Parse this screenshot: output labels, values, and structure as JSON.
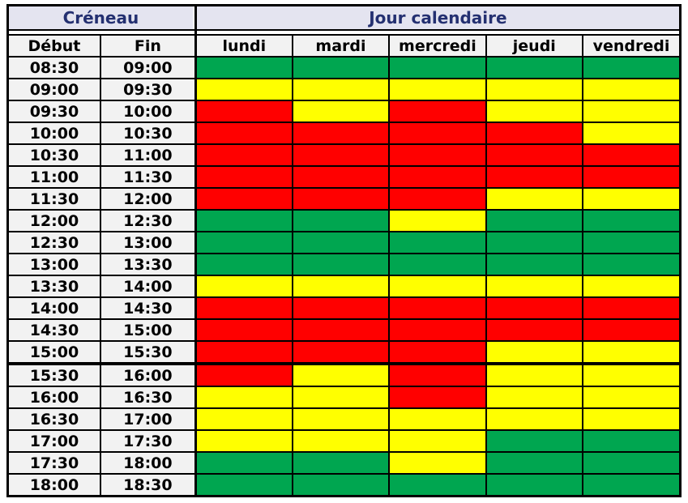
{
  "table": {
    "creneau_header": "Créneau",
    "jour_header": "Jour calendaire",
    "debut_label": "Début",
    "fin_label": "Fin",
    "days": [
      "lundi",
      "mardi",
      "mercredi",
      "jeudi",
      "vendredi"
    ],
    "group_header_bg": "#E4E4F0",
    "group_header_text_color": "#243071",
    "subheader_bg": "#F2F2F2",
    "time_cell_bg": "#F2F2F2",
    "border_color": "#000000",
    "state_colors": {
      "green": "#00A650",
      "yellow": "#FFFF00",
      "red": "#FF0000"
    },
    "rows": [
      {
        "debut": "08:30",
        "fin": "09:00",
        "cells": [
          "green",
          "green",
          "green",
          "green",
          "green"
        ]
      },
      {
        "debut": "09:00",
        "fin": "09:30",
        "cells": [
          "yellow",
          "yellow",
          "yellow",
          "yellow",
          "yellow"
        ]
      },
      {
        "debut": "09:30",
        "fin": "10:00",
        "cells": [
          "red",
          "yellow",
          "red",
          "yellow",
          "yellow"
        ]
      },
      {
        "debut": "10:00",
        "fin": "10:30",
        "cells": [
          "red",
          "red",
          "red",
          "red",
          "yellow"
        ]
      },
      {
        "debut": "10:30",
        "fin": "11:00",
        "cells": [
          "red",
          "red",
          "red",
          "red",
          "red"
        ]
      },
      {
        "debut": "11:00",
        "fin": "11:30",
        "cells": [
          "red",
          "red",
          "red",
          "red",
          "red"
        ]
      },
      {
        "debut": "11:30",
        "fin": "12:00",
        "cells": [
          "red",
          "red",
          "red",
          "yellow",
          "yellow"
        ]
      },
      {
        "debut": "12:00",
        "fin": "12:30",
        "cells": [
          "green",
          "green",
          "yellow",
          "green",
          "green"
        ]
      },
      {
        "debut": "12:30",
        "fin": "13:00",
        "cells": [
          "green",
          "green",
          "green",
          "green",
          "green"
        ]
      },
      {
        "debut": "13:00",
        "fin": "13:30",
        "cells": [
          "green",
          "green",
          "green",
          "green",
          "green"
        ]
      },
      {
        "debut": "13:30",
        "fin": "14:00",
        "cells": [
          "yellow",
          "yellow",
          "yellow",
          "yellow",
          "yellow"
        ]
      },
      {
        "debut": "14:00",
        "fin": "14:30",
        "cells": [
          "red",
          "red",
          "red",
          "red",
          "red"
        ]
      },
      {
        "debut": "14:30",
        "fin": "15:00",
        "cells": [
          "red",
          "red",
          "red",
          "red",
          "red"
        ]
      },
      {
        "debut": "15:00",
        "fin": "15:30",
        "cells": [
          "red",
          "red",
          "red",
          "yellow",
          "yellow"
        ],
        "thick_bottom": true
      },
      {
        "debut": "15:30",
        "fin": "16:00",
        "cells": [
          "red",
          "yellow",
          "red",
          "yellow",
          "yellow"
        ]
      },
      {
        "debut": "16:00",
        "fin": "16:30",
        "cells": [
          "yellow",
          "yellow",
          "red",
          "yellow",
          "yellow"
        ]
      },
      {
        "debut": "16:30",
        "fin": "17:00",
        "cells": [
          "yellow",
          "yellow",
          "yellow",
          "yellow",
          "yellow"
        ]
      },
      {
        "debut": "17:00",
        "fin": "17:30",
        "cells": [
          "yellow",
          "yellow",
          "yellow",
          "green",
          "green"
        ]
      },
      {
        "debut": "17:30",
        "fin": "18:00",
        "cells": [
          "green",
          "green",
          "yellow",
          "green",
          "green"
        ]
      },
      {
        "debut": "18:00",
        "fin": "18:30",
        "cells": [
          "green",
          "green",
          "green",
          "green",
          "green"
        ]
      }
    ]
  },
  "chart_data": {
    "type": "heatmap",
    "title": "",
    "x_label": "Jour calendaire",
    "y_label": "Créneau",
    "x_categories": [
      "lundi",
      "mardi",
      "mercredi",
      "jeudi",
      "vendredi"
    ],
    "y_categories": [
      "08:30–09:00",
      "09:00–09:30",
      "09:30–10:00",
      "10:00–10:30",
      "10:30–11:00",
      "11:00–11:30",
      "11:30–12:00",
      "12:00–12:30",
      "12:30–13:00",
      "13:00–13:30",
      "13:30–14:00",
      "14:00–14:30",
      "14:30–15:00",
      "15:00–15:30",
      "15:30–16:00",
      "16:00–16:30",
      "16:30–17:00",
      "17:00–17:30",
      "17:30–18:00",
      "18:00–18:30"
    ],
    "values": [
      [
        "green",
        "green",
        "green",
        "green",
        "green"
      ],
      [
        "yellow",
        "yellow",
        "yellow",
        "yellow",
        "yellow"
      ],
      [
        "red",
        "yellow",
        "red",
        "yellow",
        "yellow"
      ],
      [
        "red",
        "red",
        "red",
        "red",
        "yellow"
      ],
      [
        "red",
        "red",
        "red",
        "red",
        "red"
      ],
      [
        "red",
        "red",
        "red",
        "red",
        "red"
      ],
      [
        "red",
        "red",
        "red",
        "yellow",
        "yellow"
      ],
      [
        "green",
        "green",
        "yellow",
        "green",
        "green"
      ],
      [
        "green",
        "green",
        "green",
        "green",
        "green"
      ],
      [
        "green",
        "green",
        "green",
        "green",
        "green"
      ],
      [
        "yellow",
        "yellow",
        "yellow",
        "yellow",
        "yellow"
      ],
      [
        "red",
        "red",
        "red",
        "red",
        "red"
      ],
      [
        "red",
        "red",
        "red",
        "red",
        "red"
      ],
      [
        "red",
        "red",
        "red",
        "yellow",
        "yellow"
      ],
      [
        "red",
        "yellow",
        "red",
        "yellow",
        "yellow"
      ],
      [
        "yellow",
        "yellow",
        "red",
        "yellow",
        "yellow"
      ],
      [
        "yellow",
        "yellow",
        "yellow",
        "yellow",
        "yellow"
      ],
      [
        "yellow",
        "yellow",
        "yellow",
        "green",
        "green"
      ],
      [
        "green",
        "green",
        "yellow",
        "green",
        "green"
      ],
      [
        "green",
        "green",
        "green",
        "green",
        "green"
      ]
    ],
    "color_map": {
      "green": "#00A650",
      "yellow": "#FFFF00",
      "red": "#FF0000"
    },
    "legend": "none",
    "grid": "on"
  }
}
